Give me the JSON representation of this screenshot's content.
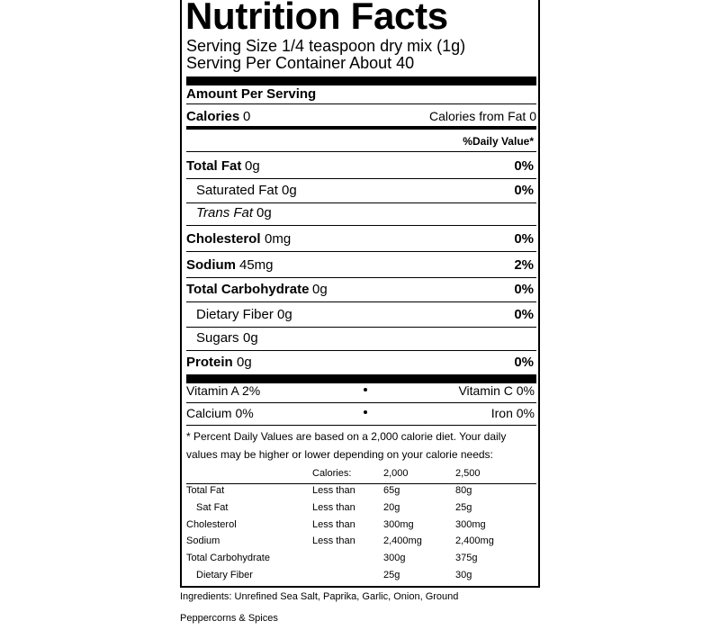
{
  "title": "Nutrition Facts",
  "serving_size": "Serving Size 1/4 teaspoon dry mix (1g)",
  "servings": "Serving Per Container About 40",
  "amount_header": "Amount Per Serving",
  "calories": {
    "label": "Calories",
    "value": "0",
    "from_fat": "Calories from Fat 0"
  },
  "dv_header": "%Daily Value*",
  "nutrients": [
    {
      "label": "Total Fat",
      "amount": "0g",
      "dv": "0%",
      "style": "main"
    },
    {
      "label": "Saturated Fat",
      "amount": "0g",
      "dv": "0%",
      "style": "sub"
    },
    {
      "label": "Trans Fat",
      "amount": "0g",
      "style": "sub-italic"
    },
    {
      "label": "Cholesterol",
      "amount": "0mg",
      "dv": "0%",
      "style": "main"
    },
    {
      "label": "Sodium",
      "amount": "45mg",
      "dv": "2%",
      "style": "main"
    },
    {
      "label": "Total Carbohydrate",
      "amount": "0g",
      "dv": "0%",
      "style": "main"
    },
    {
      "label": "Dietary Fiber",
      "amount": "0g",
      "dv": "0%",
      "style": "sub"
    },
    {
      "label": "Sugars",
      "amount": "0g",
      "style": "sub"
    },
    {
      "label": "Protein",
      "amount": "0g",
      "dv": "0%",
      "style": "main"
    }
  ],
  "vitamins": [
    [
      "Vitamin A 2%",
      "Vitamin C 0%"
    ],
    [
      "Calcium 0%",
      "Iron 0%"
    ]
  ],
  "footnote": [
    "* Percent Daily Values are based on a 2,000 calorie diet. Your daily",
    "values may be higher or lower depending on your calorie needs:"
  ],
  "reference_table": {
    "header": [
      "Calories:",
      "2,000",
      "2,500"
    ],
    "rows": [
      {
        "name": "Total Fat",
        "limit": "Less than",
        "cal_2000": "65g",
        "cal_2500": "80g"
      },
      {
        "name": "Sat Fat",
        "limit": "Less than",
        "cal_2000": "20g",
        "cal_2500": "25g",
        "indent": true
      },
      {
        "name": "Cholesterol",
        "limit": "Less than",
        "cal_2000": "300mg",
        "cal_2500": "300mg"
      },
      {
        "name": "Sodium",
        "limit": "Less than",
        "cal_2000": "2,400mg",
        "cal_2500": "2,400mg"
      },
      {
        "name": "Total Carbohydrate",
        "cal_2000": "300g",
        "cal_2500": "375g"
      },
      {
        "name": "Dietary Fiber",
        "cal_2000": "25g",
        "cal_2500": "30g",
        "indent": true
      }
    ]
  },
  "ingredients": [
    "Ingredients: Unrefined Sea Salt, Paprika, Garlic, Onion, Ground",
    "Peppercorns & Spices"
  ]
}
